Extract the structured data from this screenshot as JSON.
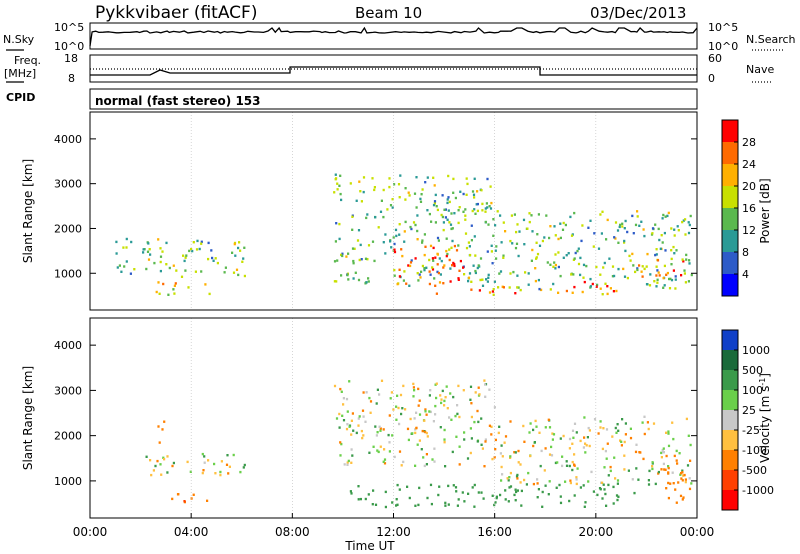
{
  "header": {
    "radar": "Pykkvibaer (fitACF)",
    "beam": "Beam 10",
    "date": "03/Dec/2013"
  },
  "noise_panel": {
    "left_label": "N.Sky",
    "left_ticks": [
      "10^5",
      "10^0"
    ],
    "right_label": "N.Search",
    "right_ticks": [
      "10^5",
      "10^0"
    ]
  },
  "freq_panel": {
    "left_label_line1": "Freq.",
    "left_label_line2": "[MHz]",
    "left_ticks": [
      "18",
      "8"
    ],
    "right_label": "Nave",
    "right_ticks": [
      "60",
      "0"
    ]
  },
  "cpid_panel": {
    "label": "CPID",
    "text": "normal (fast stereo) 153"
  },
  "chart_data": [
    {
      "type": "heatmap",
      "name": "power",
      "ylabel": "Slant Range [km]",
      "ylim": [
        180,
        4600
      ],
      "yticks": [
        "4000",
        "3000",
        "2000",
        "1000"
      ],
      "xlim": [
        "00:00",
        "24:00"
      ],
      "colorbar": {
        "label": "Power [dB]",
        "ticks": [
          "28",
          "24",
          "20",
          "16",
          "12",
          "8",
          "4"
        ],
        "colors": [
          "#ff0000",
          "#ff6a00",
          "#ffb000",
          "#c8e000",
          "#5ab84e",
          "#2a9a96",
          "#2d5bc8",
          "#0000ff"
        ]
      },
      "echo_regions": [
        {
          "t": [
            1.0,
            6.3
          ],
          "r": [
            900,
            1750
          ],
          "p": 14
        },
        {
          "t": [
            2.3,
            4.7
          ],
          "r": [
            500,
            800
          ],
          "p": 20
        },
        {
          "t": [
            9.6,
            16.0
          ],
          "r": [
            700,
            3200
          ],
          "p": 14
        },
        {
          "t": [
            11.8,
            15.0
          ],
          "r": [
            700,
            1600
          ],
          "p": 26
        },
        {
          "t": [
            13.6,
            17.5
          ],
          "r": [
            500,
            700
          ],
          "p": 24
        },
        {
          "t": [
            16.0,
            23.8
          ],
          "r": [
            600,
            2400
          ],
          "p": 14
        },
        {
          "t": [
            18.0,
            21.0
          ],
          "r": [
            500,
            800
          ],
          "p": 26
        },
        {
          "t": [
            21.5,
            23.5
          ],
          "r": [
            900,
            1300
          ],
          "p": 26
        }
      ]
    },
    {
      "type": "heatmap",
      "name": "velocity",
      "ylabel": "Slant Range [km]",
      "ylim": [
        180,
        4600
      ],
      "yticks": [
        "4000",
        "3000",
        "2000",
        "1000"
      ],
      "xlim": [
        "00:00",
        "24:00"
      ],
      "xticks": [
        "00:00",
        "04:00",
        "08:00",
        "12:00",
        "16:00",
        "20:00",
        "00:00"
      ],
      "xlabel": "Time UT",
      "colorbar": {
        "label": "Velocity [m s^-1]",
        "ticks": [
          "1000",
          "500",
          "100",
          "25",
          "-25",
          "-100",
          "-500",
          "-1000"
        ],
        "colors": [
          "#1040c8",
          "#1a6a3a",
          "#3a9a4a",
          "#6ad04a",
          "#c8c8c8",
          "#ffc040",
          "#ff8000",
          "#ff4000",
          "#ff0000"
        ]
      },
      "echo_regions": [
        {
          "t": [
            2.0,
            6.2
          ],
          "r": [
            1100,
            1600
          ],
          "v": 0
        },
        {
          "t": [
            2.6,
            3.0
          ],
          "r": [
            1700,
            2300
          ],
          "v": -300
        },
        {
          "t": [
            3.2,
            4.8
          ],
          "r": [
            500,
            800
          ],
          "v": -400
        },
        {
          "t": [
            9.6,
            16.0
          ],
          "r": [
            1300,
            3200
          ],
          "v": 0
        },
        {
          "t": [
            16.0,
            23.8
          ],
          "r": [
            900,
            2400
          ],
          "v": 0
        },
        {
          "t": [
            10.0,
            21.5
          ],
          "r": [
            400,
            900
          ],
          "v": 250
        },
        {
          "t": [
            22.5,
            23.8
          ],
          "r": [
            500,
            1600
          ],
          "v": -300
        }
      ]
    }
  ]
}
